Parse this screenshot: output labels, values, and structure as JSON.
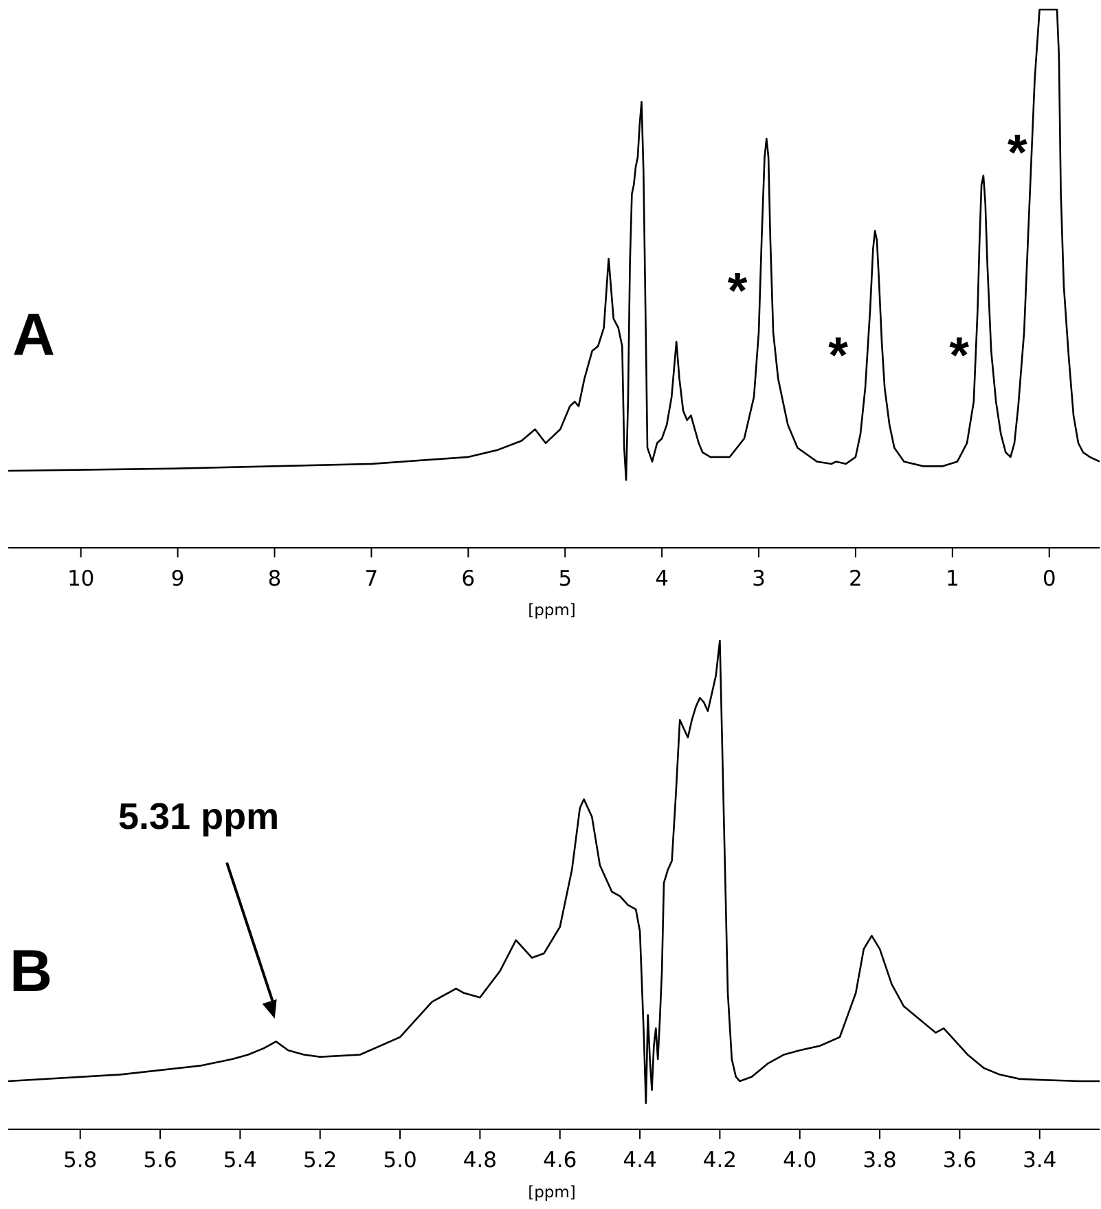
{
  "chart_data": [
    {
      "panel": "A",
      "type": "line",
      "xlabel": "[ppm]",
      "xlim": [
        10.75,
        -0.52
      ],
      "x_reversed": true,
      "ticks": [
        10,
        9,
        8,
        7,
        6,
        5,
        4,
        3,
        2,
        1,
        0
      ],
      "tick_labels": [
        "10",
        "9",
        "8",
        "7",
        "6",
        "5",
        "4",
        "3",
        "2",
        "1",
        "0"
      ],
      "markers": [
        {
          "label": "*",
          "x": 3.22,
          "y": 0.42
        },
        {
          "label": "*",
          "x": 2.18,
          "y": 0.28
        },
        {
          "label": "*",
          "x": 0.93,
          "y": 0.28
        },
        {
          "label": "*",
          "x": 0.33,
          "y": 0.72
        }
      ],
      "series": [
        {
          "x": [
            10.75,
            9.0,
            7.0,
            6.0,
            5.7,
            5.45,
            5.31,
            5.2,
            5.05,
            4.95,
            4.9,
            4.86,
            4.8,
            4.72,
            4.66,
            4.6,
            4.55,
            4.5,
            4.45,
            4.41,
            4.39,
            4.37,
            4.35,
            4.33,
            4.31,
            4.29,
            4.27,
            4.25,
            4.23,
            4.21,
            4.19,
            4.17,
            4.15,
            4.1,
            4.05,
            4.0,
            3.95,
            3.9,
            3.85,
            3.82,
            3.78,
            3.74,
            3.7,
            3.66,
            3.62,
            3.58,
            3.5,
            3.3,
            3.15,
            3.05,
            3.0,
            2.97,
            2.94,
            2.92,
            2.9,
            2.88,
            2.85,
            2.8,
            2.75,
            2.7,
            2.6,
            2.4,
            2.25,
            2.2,
            2.1,
            2.0,
            1.95,
            1.9,
            1.85,
            1.82,
            1.8,
            1.78,
            1.76,
            1.73,
            1.7,
            1.65,
            1.6,
            1.5,
            1.3,
            1.1,
            0.95,
            0.85,
            0.78,
            0.74,
            0.72,
            0.7,
            0.68,
            0.66,
            0.64,
            0.6,
            0.55,
            0.5,
            0.45,
            0.4,
            0.36,
            0.32,
            0.26,
            0.2,
            0.15,
            0.1,
            0.06,
            0.04,
            0.02,
            0.0,
            -0.02,
            -0.04,
            -0.06,
            -0.08,
            -0.1,
            -0.12,
            -0.15,
            -0.2,
            -0.25,
            -0.3,
            -0.35,
            -0.42,
            -0.52
          ],
          "y": [
            0.0,
            0.005,
            0.015,
            0.03,
            0.045,
            0.065,
            0.09,
            0.06,
            0.09,
            0.14,
            0.15,
            0.14,
            0.2,
            0.26,
            0.27,
            0.31,
            0.46,
            0.33,
            0.31,
            0.27,
            0.05,
            -0.02,
            0.15,
            0.45,
            0.6,
            0.62,
            0.66,
            0.68,
            0.75,
            0.8,
            0.65,
            0.35,
            0.05,
            0.02,
            0.06,
            0.07,
            0.1,
            0.16,
            0.28,
            0.2,
            0.13,
            0.11,
            0.12,
            0.09,
            0.06,
            0.04,
            0.03,
            0.03,
            0.07,
            0.16,
            0.3,
            0.5,
            0.68,
            0.72,
            0.68,
            0.5,
            0.3,
            0.2,
            0.15,
            0.1,
            0.05,
            0.02,
            0.015,
            0.02,
            0.015,
            0.03,
            0.08,
            0.18,
            0.35,
            0.48,
            0.52,
            0.5,
            0.42,
            0.28,
            0.18,
            0.1,
            0.05,
            0.02,
            0.01,
            0.01,
            0.02,
            0.06,
            0.15,
            0.35,
            0.5,
            0.62,
            0.64,
            0.58,
            0.45,
            0.26,
            0.15,
            0.08,
            0.04,
            0.03,
            0.06,
            0.14,
            0.3,
            0.6,
            0.85,
            1.0,
            1.0,
            1.0,
            1.0,
            1.0,
            1.0,
            1.0,
            1.0,
            1.0,
            0.9,
            0.6,
            0.4,
            0.25,
            0.12,
            0.06,
            0.04,
            0.03,
            0.02
          ]
        }
      ]
    },
    {
      "panel": "B",
      "type": "line",
      "xlabel": "[ppm]",
      "xlim": [
        5.98,
        3.25
      ],
      "x_reversed": true,
      "ticks": [
        5.8,
        5.6,
        5.4,
        5.2,
        5.0,
        4.8,
        4.6,
        4.4,
        4.2,
        4.0,
        3.8,
        3.6,
        3.4
      ],
      "tick_labels": [
        "5.8",
        "5.6",
        "5.4",
        "5.2",
        "5.0",
        "4.8",
        "4.6",
        "4.4",
        "4.2",
        "4.0",
        "3.8",
        "3.6",
        "3.4"
      ],
      "annotation": {
        "text": "5.31 ppm",
        "x": 5.31
      },
      "series": [
        {
          "x": [
            5.98,
            5.7,
            5.5,
            5.42,
            5.38,
            5.34,
            5.31,
            5.28,
            5.24,
            5.2,
            5.1,
            5.0,
            4.96,
            4.92,
            4.9,
            4.88,
            4.86,
            4.84,
            4.8,
            4.75,
            4.71,
            4.69,
            4.67,
            4.64,
            4.6,
            4.57,
            4.55,
            4.54,
            4.52,
            4.5,
            4.47,
            4.45,
            4.43,
            4.41,
            4.4,
            4.39,
            4.385,
            4.38,
            4.375,
            4.37,
            4.365,
            4.36,
            4.355,
            4.35,
            4.345,
            4.34,
            4.33,
            4.32,
            4.31,
            4.3,
            4.29,
            4.28,
            4.27,
            4.26,
            4.25,
            4.24,
            4.23,
            4.22,
            4.21,
            4.2,
            4.19,
            4.18,
            4.17,
            4.16,
            4.15,
            4.12,
            4.08,
            4.04,
            4.0,
            3.95,
            3.9,
            3.86,
            3.84,
            3.82,
            3.8,
            3.77,
            3.74,
            3.7,
            3.66,
            3.64,
            3.62,
            3.58,
            3.54,
            3.5,
            3.45,
            3.4,
            3.3,
            3.25
          ],
          "y": [
            0.0,
            0.015,
            0.035,
            0.05,
            0.06,
            0.075,
            0.09,
            0.07,
            0.06,
            0.055,
            0.06,
            0.1,
            0.14,
            0.18,
            0.19,
            0.2,
            0.21,
            0.2,
            0.19,
            0.25,
            0.32,
            0.3,
            0.28,
            0.29,
            0.35,
            0.48,
            0.62,
            0.64,
            0.6,
            0.49,
            0.43,
            0.42,
            0.4,
            0.39,
            0.34,
            0.1,
            -0.05,
            0.15,
            0.05,
            -0.02,
            0.08,
            0.12,
            0.05,
            0.14,
            0.25,
            0.45,
            0.48,
            0.5,
            0.65,
            0.82,
            0.8,
            0.78,
            0.82,
            0.85,
            0.87,
            0.86,
            0.84,
            0.88,
            0.92,
            1.0,
            0.6,
            0.2,
            0.05,
            0.01,
            0.0,
            0.01,
            0.04,
            0.06,
            0.07,
            0.08,
            0.1,
            0.2,
            0.3,
            0.33,
            0.3,
            0.22,
            0.17,
            0.14,
            0.11,
            0.12,
            0.1,
            0.06,
            0.03,
            0.015,
            0.005,
            0.003,
            0.0,
            0.0
          ]
        }
      ]
    }
  ]
}
